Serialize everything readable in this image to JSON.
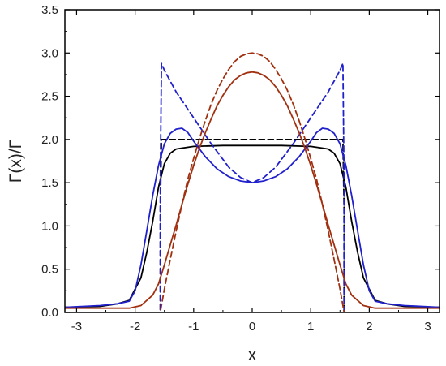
{
  "chart_data": {
    "type": "line",
    "title": "",
    "xlabel": "x",
    "ylabel": "Γ(x)/Γ",
    "xlim": [
      -3.2,
      3.2
    ],
    "ylim": [
      0.0,
      3.5
    ],
    "xticks": [
      -3,
      -2,
      -1,
      0,
      1,
      2,
      3
    ],
    "yticks": [
      0.0,
      0.5,
      1.0,
      1.5,
      2.0,
      2.5,
      3.0,
      3.5
    ],
    "xtick_labels": [
      "-3",
      "-2",
      "-1",
      "0",
      "1",
      "2",
      "3"
    ],
    "ytick_labels": [
      "0.0",
      "0.5",
      "1.0",
      "1.5",
      "2.0",
      "2.5",
      "3.0",
      "3.5"
    ],
    "grid": false,
    "legend": "none",
    "series": [
      {
        "color": "#000000",
        "style": "dashed",
        "x": [
          -3.2,
          -1.57,
          -1.57,
          -1.55,
          1.55,
          1.57,
          1.57,
          3.2
        ],
        "y": [
          0.0,
          0.0,
          1.2,
          2.0,
          2.0,
          1.2,
          0.0,
          0.0
        ]
      },
      {
        "color": "#000000",
        "style": "solid",
        "x": [
          -3.2,
          -2.6,
          -2.3,
          -2.1,
          -1.9,
          -1.8,
          -1.7,
          -1.6,
          -1.5,
          -1.4,
          -1.3,
          -1.2,
          -1.0,
          -0.5,
          0.0,
          0.5,
          1.0,
          1.2,
          1.3,
          1.4,
          1.5,
          1.6,
          1.7,
          1.8,
          1.9,
          2.1,
          2.3,
          2.6,
          3.2
        ],
        "y": [
          0.06,
          0.07,
          0.1,
          0.14,
          0.4,
          0.7,
          1.05,
          1.45,
          1.72,
          1.84,
          1.89,
          1.9,
          1.92,
          1.93,
          1.93,
          1.93,
          1.92,
          1.9,
          1.89,
          1.84,
          1.72,
          1.45,
          1.05,
          0.7,
          0.4,
          0.14,
          0.1,
          0.07,
          0.06
        ]
      },
      {
        "color": "#2020cc",
        "style": "dashed",
        "x": [
          -3.2,
          -1.57,
          -1.57,
          -1.55,
          -1.5,
          -1.3,
          -1.0,
          -0.7,
          -0.4,
          -0.2,
          0.0,
          0.2,
          0.4,
          0.7,
          1.0,
          1.3,
          1.5,
          1.55,
          1.57,
          1.57,
          3.2
        ],
        "y": [
          0.0,
          0.0,
          1.5,
          2.88,
          2.8,
          2.55,
          2.25,
          1.95,
          1.68,
          1.56,
          1.5,
          1.56,
          1.68,
          1.95,
          2.25,
          2.55,
          2.8,
          2.88,
          1.5,
          0.0,
          0.0
        ]
      },
      {
        "color": "#2020cc",
        "style": "solid",
        "x": [
          -3.2,
          -2.6,
          -2.3,
          -2.1,
          -2.0,
          -1.9,
          -1.8,
          -1.7,
          -1.6,
          -1.5,
          -1.4,
          -1.3,
          -1.2,
          -1.1,
          -1.0,
          -0.8,
          -0.6,
          -0.4,
          -0.2,
          0.0,
          0.2,
          0.4,
          0.6,
          0.8,
          1.0,
          1.1,
          1.2,
          1.3,
          1.4,
          1.5,
          1.6,
          1.7,
          1.8,
          1.9,
          2.0,
          2.1,
          2.3,
          2.6,
          3.2
        ],
        "y": [
          0.06,
          0.08,
          0.1,
          0.13,
          0.25,
          0.55,
          0.95,
          1.35,
          1.7,
          1.95,
          2.07,
          2.12,
          2.13,
          2.08,
          1.98,
          1.8,
          1.66,
          1.57,
          1.52,
          1.5,
          1.52,
          1.57,
          1.66,
          1.8,
          1.98,
          2.08,
          2.13,
          2.12,
          2.07,
          1.95,
          1.7,
          1.35,
          0.95,
          0.55,
          0.25,
          0.13,
          0.1,
          0.08,
          0.06
        ]
      },
      {
        "color": "#a03010",
        "style": "dashed",
        "x": [
          -3.2,
          -1.571,
          -1.5,
          -1.4,
          -1.3,
          -1.2,
          -1.1,
          -1.0,
          -0.9,
          -0.8,
          -0.7,
          -0.6,
          -0.5,
          -0.4,
          -0.3,
          -0.2,
          -0.1,
          0.0,
          0.1,
          0.2,
          0.3,
          0.4,
          0.5,
          0.6,
          0.7,
          0.8,
          0.9,
          1.0,
          1.1,
          1.2,
          1.3,
          1.4,
          1.5,
          1.571,
          3.2
        ],
        "y": [
          0.0,
          0.0,
          0.27,
          0.61,
          0.94,
          1.25,
          1.54,
          1.78,
          2.01,
          2.22,
          2.41,
          2.57,
          2.7,
          2.81,
          2.9,
          2.96,
          2.99,
          3.0,
          2.99,
          2.96,
          2.9,
          2.81,
          2.7,
          2.57,
          2.41,
          2.22,
          2.01,
          1.78,
          1.54,
          1.25,
          0.94,
          0.61,
          0.27,
          0.0,
          0.0
        ]
      },
      {
        "color": "#a03010",
        "style": "solid",
        "x": [
          -3.2,
          -2.4,
          -2.1,
          -1.9,
          -1.7,
          -1.6,
          -1.5,
          -1.4,
          -1.3,
          -1.2,
          -1.1,
          -1.0,
          -0.9,
          -0.8,
          -0.7,
          -0.6,
          -0.5,
          -0.4,
          -0.3,
          -0.2,
          -0.1,
          0.0,
          0.1,
          0.2,
          0.3,
          0.4,
          0.5,
          0.6,
          0.7,
          0.8,
          0.9,
          1.0,
          1.1,
          1.2,
          1.3,
          1.4,
          1.5,
          1.6,
          1.7,
          1.9,
          2.1,
          2.4,
          3.2
        ],
        "y": [
          0.05,
          0.05,
          0.05,
          0.08,
          0.2,
          0.33,
          0.55,
          0.78,
          1.01,
          1.25,
          1.48,
          1.7,
          1.9,
          2.08,
          2.24,
          2.39,
          2.51,
          2.61,
          2.69,
          2.74,
          2.77,
          2.78,
          2.77,
          2.74,
          2.69,
          2.61,
          2.51,
          2.39,
          2.24,
          2.08,
          1.9,
          1.7,
          1.48,
          1.25,
          1.01,
          0.78,
          0.55,
          0.33,
          0.2,
          0.08,
          0.05,
          0.05,
          0.05
        ]
      }
    ]
  }
}
